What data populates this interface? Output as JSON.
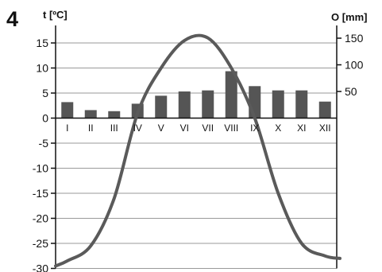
{
  "figure_number": "4",
  "chart_data": {
    "type": "bar+line",
    "categories": [
      "I",
      "II",
      "III",
      "IV",
      "V",
      "VI",
      "VII",
      "VIII",
      "IX",
      "X",
      "XI",
      "XII"
    ],
    "left_axis": {
      "label": "t [ºC]",
      "ticks": [
        15,
        10,
        5,
        0,
        -5,
        -10,
        -15,
        -20,
        -25,
        -30
      ],
      "range": [
        -30,
        18.5
      ]
    },
    "right_axis": {
      "label": "O [mm]",
      "ticks": [
        150,
        100,
        50
      ],
      "range": [
        0,
        170
      ]
    },
    "series": [
      {
        "kind": "bar",
        "axis": "right",
        "values": [
          30,
          15,
          13,
          27,
          42,
          50,
          52,
          88,
          60,
          52,
          52,
          31
        ],
        "color": "#555555"
      },
      {
        "kind": "line",
        "axis": "left",
        "values": [
          -28.5,
          -25.5,
          -16,
          1,
          10,
          15.5,
          16,
          10,
          0,
          -15,
          -25,
          -27.5
        ],
        "color": "#5a5a5a"
      }
    ],
    "grid": true
  }
}
